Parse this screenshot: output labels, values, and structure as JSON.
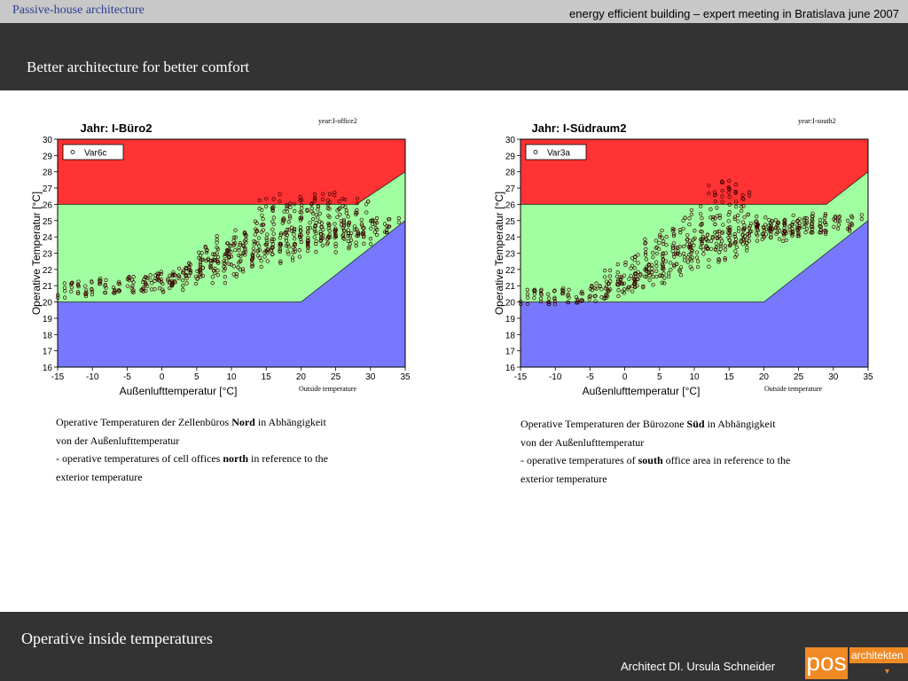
{
  "header": {
    "section": "Passive-house architecture",
    "event": "energy efficient building – expert meeting in Bratislava june 2007",
    "title": "Better architecture for better comfort"
  },
  "chart_data": [
    {
      "type": "scatter",
      "title": "Jahr: I-Büro2",
      "note": "year:I-office2",
      "xlabel": "Außenlufttemperatur [°C]",
      "xlabel_note": "Outside temperature",
      "ylabel": "Operative Temperatur [°C]",
      "xlim": [
        -15,
        35
      ],
      "ylim": [
        16,
        30
      ],
      "xticks": [
        -15,
        -10,
        -5,
        0,
        5,
        10,
        15,
        20,
        25,
        30,
        35
      ],
      "yticks": [
        16,
        17,
        18,
        19,
        20,
        21,
        22,
        23,
        24,
        25,
        26,
        27,
        28,
        29,
        30
      ],
      "legend": {
        "label": "Var6c",
        "position": "top-left"
      },
      "zones": {
        "upper": [
          [
            -15,
            26
          ],
          [
            28,
            26
          ],
          [
            35,
            28
          ],
          [
            35,
            30
          ],
          [
            -15,
            30
          ]
        ],
        "lower": [
          [
            -15,
            20
          ],
          [
            20,
            20
          ],
          [
            35,
            25
          ],
          [
            35,
            16
          ],
          [
            -15,
            16
          ]
        ]
      },
      "colors": {
        "upper": "#ff3333",
        "comfort": "#a0ffa0",
        "lower": "#7878ff",
        "points": "#3a0000"
      },
      "series": [
        {
          "name": "Var6c",
          "x": [
            -14,
            -13,
            -12,
            -11,
            -10,
            -9,
            -8,
            -7,
            -6,
            -5,
            -4,
            -3,
            -2,
            -1,
            0,
            1,
            2,
            3,
            4,
            5,
            6,
            7,
            8,
            9,
            10,
            11,
            12,
            13,
            14,
            15,
            16,
            17,
            18,
            19,
            20,
            21,
            22,
            23,
            24,
            25,
            26,
            27,
            28,
            29,
            30,
            31,
            32,
            33,
            -3,
            -1,
            1,
            3,
            5,
            7,
            9,
            11,
            13,
            15,
            17,
            19,
            21,
            23,
            25,
            27,
            0,
            2,
            4,
            6,
            8,
            10,
            12,
            14,
            16,
            18,
            20,
            22,
            24,
            26,
            28,
            5,
            7,
            9,
            11,
            13,
            15,
            17,
            19,
            21,
            23,
            25,
            27,
            29,
            8,
            10,
            12,
            14,
            16,
            18,
            20,
            22,
            24,
            26,
            28,
            30,
            15,
            17,
            19,
            21,
            23,
            25
          ],
          "y": [
            20.7,
            20.7,
            20.8,
            20.8,
            20.9,
            20.9,
            21.0,
            21.0,
            21.0,
            21.1,
            21.1,
            21.1,
            21.2,
            21.2,
            21.3,
            21.4,
            21.5,
            21.6,
            21.8,
            22.0,
            22.1,
            22.3,
            22.5,
            22.7,
            22.9,
            23.0,
            23.2,
            23.3,
            23.5,
            23.6,
            23.7,
            23.8,
            23.9,
            24.0,
            24.1,
            24.1,
            24.2,
            24.3,
            24.4,
            24.4,
            24.5,
            24.5,
            24.5,
            24.6,
            24.6,
            24.6,
            24.7,
            24.7,
            21.0,
            21.2,
            21.5,
            21.9,
            22.4,
            22.8,
            23.2,
            23.6,
            24.0,
            24.3,
            24.6,
            24.8,
            25.0,
            25.1,
            25.2,
            25.2,
            21.0,
            21.2,
            21.5,
            21.8,
            22.1,
            22.5,
            22.8,
            23.1,
            23.3,
            23.5,
            23.7,
            23.9,
            24.0,
            24.1,
            24.2,
            22.6,
            23.0,
            23.6,
            24.0,
            24.6,
            25.2,
            25.4,
            25.6,
            25.6,
            25.5,
            25.8,
            25.9,
            25.8,
            21.6,
            22.0,
            22.3,
            22.6,
            22.8,
            23.0,
            23.2,
            23.4,
            23.5,
            23.7,
            23.9,
            24.0,
            26.0,
            26.2,
            26.0,
            26.0,
            26.2,
            26.3
          ]
        }
      ]
    },
    {
      "type": "scatter",
      "title": "Jahr: I-Südraum2",
      "note": "year:I-south2",
      "xlabel": "Außenlufttemperatur [°C]",
      "xlabel_note": "Outside temperature",
      "ylabel": "Operative Temperatur [°C]",
      "xlim": [
        -15,
        35
      ],
      "ylim": [
        16,
        30
      ],
      "xticks": [
        -15,
        -10,
        -5,
        0,
        5,
        10,
        15,
        20,
        25,
        30,
        35
      ],
      "yticks": [
        16,
        17,
        18,
        19,
        20,
        21,
        22,
        23,
        24,
        25,
        26,
        27,
        28,
        29,
        30
      ],
      "legend": {
        "label": "Var3a",
        "position": "top-left"
      },
      "zones": {
        "upper": [
          [
            -15,
            26
          ],
          [
            29,
            26
          ],
          [
            35,
            28
          ],
          [
            35,
            30
          ],
          [
            -15,
            30
          ]
        ],
        "lower": [
          [
            -15,
            20
          ],
          [
            20,
            20
          ],
          [
            35,
            25
          ],
          [
            35,
            16
          ],
          [
            -15,
            16
          ]
        ]
      },
      "colors": {
        "upper": "#ff3333",
        "comfort": "#a0ffa0",
        "lower": "#7878ff",
        "points": "#3a0000"
      },
      "series": [
        {
          "name": "Var3a",
          "x": [
            -14,
            -13,
            -12,
            -11,
            -10,
            -9,
            -8,
            -7,
            -6,
            -5,
            -4,
            -3,
            -2,
            -1,
            0,
            1,
            2,
            3,
            4,
            5,
            6,
            7,
            8,
            9,
            10,
            11,
            12,
            13,
            14,
            15,
            16,
            17,
            18,
            19,
            20,
            21,
            22,
            23,
            24,
            25,
            26,
            27,
            28,
            29,
            30,
            31,
            32,
            33,
            -4,
            -2,
            0,
            2,
            4,
            6,
            8,
            10,
            12,
            14,
            16,
            18,
            20,
            22,
            24,
            26,
            28,
            -2,
            0,
            2,
            4,
            6,
            8,
            10,
            12,
            14,
            16,
            18,
            20,
            22,
            24,
            1,
            3,
            5,
            7,
            9,
            11,
            13,
            15,
            17,
            2,
            4,
            6,
            8,
            10,
            12,
            14,
            16,
            18,
            20,
            22,
            24,
            26,
            28,
            13,
            14,
            15,
            16,
            17
          ],
          "y": [
            20.3,
            20.3,
            20.3,
            20.3,
            20.3,
            20.3,
            20.4,
            20.4,
            20.4,
            20.5,
            20.6,
            20.7,
            20.8,
            21.0,
            21.1,
            21.3,
            21.6,
            21.8,
            22.0,
            22.2,
            22.5,
            22.7,
            22.9,
            23.1,
            23.3,
            23.4,
            23.6,
            23.7,
            23.8,
            23.9,
            24.0,
            24.1,
            24.2,
            24.2,
            24.3,
            24.4,
            24.4,
            24.5,
            24.5,
            24.6,
            24.6,
            24.7,
            24.7,
            24.7,
            24.8,
            24.8,
            24.8,
            24.9,
            20.6,
            20.8,
            21.2,
            21.6,
            22.0,
            22.6,
            23.0,
            23.4,
            23.6,
            23.9,
            24.1,
            24.4,
            24.6,
            24.7,
            24.9,
            25.0,
            25.0,
            21.5,
            22.0,
            22.6,
            23.2,
            23.7,
            24.0,
            24.3,
            24.5,
            24.7,
            24.8,
            24.5,
            24.3,
            24.1,
            24.2,
            21.0,
            21.3,
            21.6,
            22.0,
            22.3,
            22.6,
            22.9,
            23.0,
            23.2,
            22.4,
            23.4,
            24.0,
            24.8,
            25.2,
            25.5,
            25.6,
            25.4,
            25.0,
            24.8,
            24.6,
            24.6,
            24.7,
            24.6,
            27.0,
            26.6,
            27.1,
            26.8,
            26.3
          ]
        }
      ]
    }
  ],
  "captions": [
    {
      "line1_pre": "Operative Temperaturen der Zellenbüros ",
      "line1_bold": "Nord",
      "line1_post": " in Abhängigkeit",
      "line2": "von der Außenlufttemperatur",
      "line3_pre": "- operative temperatures of cell offices ",
      "line3_bold": "north",
      "line3_post": " in reference to the",
      "line4": "exterior temperature"
    },
    {
      "line1_pre": "Operative Temperaturen der Bürozone ",
      "line1_bold": "Süd",
      "line1_post": "  in Abhängigkeit",
      "line2": "von der Außenlufttemperatur",
      "line3_pre": "- operative temperatures of ",
      "line3_bold": "south",
      "line3_post": " office area in reference to the",
      "line4": "exterior temperature"
    }
  ],
  "footer": {
    "title": "Operative inside temperatures",
    "author": "Architect  DI. Ursula Schneider",
    "logo_main": "pos",
    "logo_sub": "architekten"
  }
}
